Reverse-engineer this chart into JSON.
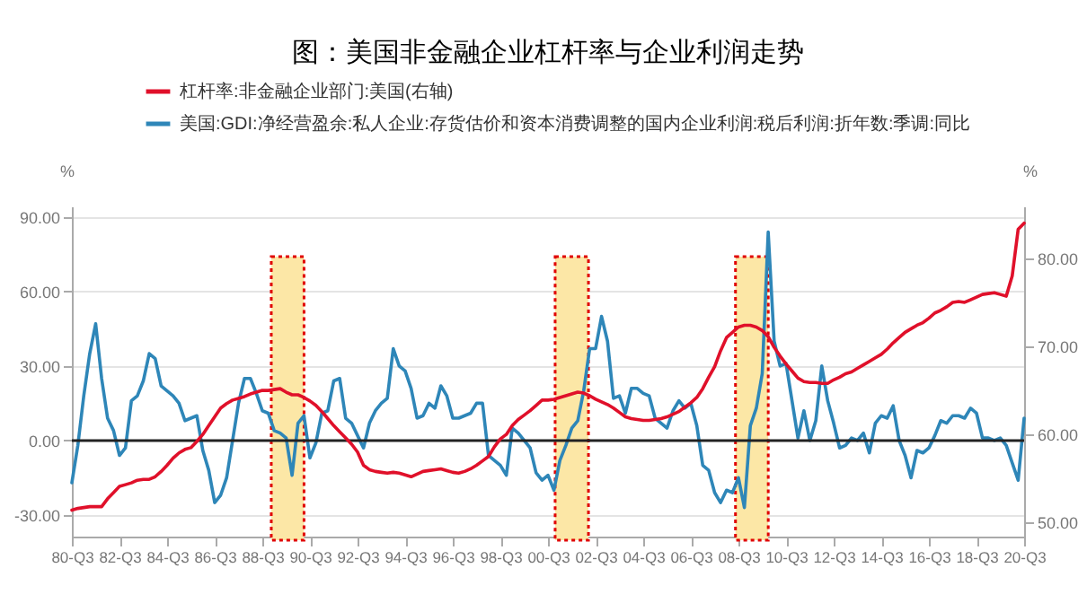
{
  "chart_data": {
    "type": "line",
    "title": "图：美国非金融企业杠杆率与企业利润走势",
    "ylabel": "%",
    "y2label": "%",
    "categories": [
      "80-Q3",
      null,
      null,
      null,
      null,
      null,
      null,
      null,
      "82-Q3",
      null,
      null,
      null,
      null,
      null,
      null,
      null,
      "84-Q3",
      null,
      null,
      null,
      null,
      null,
      null,
      null,
      "86-Q3",
      null,
      null,
      null,
      null,
      null,
      null,
      null,
      "88-Q3",
      null,
      null,
      null,
      null,
      null,
      null,
      null,
      "90-Q3",
      null,
      null,
      null,
      null,
      null,
      null,
      null,
      "92-Q3",
      null,
      null,
      null,
      null,
      null,
      null,
      null,
      "94-Q3",
      null,
      null,
      null,
      null,
      null,
      null,
      null,
      "96-Q3",
      null,
      null,
      null,
      null,
      null,
      null,
      null,
      "98-Q3",
      null,
      null,
      null,
      null,
      null,
      null,
      null,
      "00-Q3",
      null,
      null,
      null,
      null,
      null,
      null,
      null,
      "02-Q3",
      null,
      null,
      null,
      null,
      null,
      null,
      null,
      "04-Q3",
      null,
      null,
      null,
      null,
      null,
      null,
      null,
      "06-Q3",
      null,
      null,
      null,
      null,
      null,
      null,
      null,
      "08-Q3",
      null,
      null,
      null,
      null,
      null,
      null,
      null,
      "10-Q3",
      null,
      null,
      null,
      null,
      null,
      null,
      null,
      "12-Q3",
      null,
      null,
      null,
      null,
      null,
      null,
      null,
      "14-Q3",
      null,
      null,
      null,
      null,
      null,
      null,
      null,
      "16-Q3",
      null,
      null,
      null,
      null,
      null,
      null,
      null,
      "18-Q3",
      null,
      null,
      null,
      null,
      null,
      null,
      null,
      "20-Q3"
    ],
    "ylim": [
      -38.7,
      94.3
    ],
    "yticks": [
      {
        "value": -30,
        "label": "-30.00"
      },
      {
        "value": 0,
        "label": "0.00"
      },
      {
        "value": 30,
        "label": "30.00"
      },
      {
        "value": 60,
        "label": "60.00"
      },
      {
        "value": 90,
        "label": "90.00"
      }
    ],
    "y2lim": [
      48.4,
      85.9
    ],
    "y2ticks": [
      {
        "value": 50,
        "label": "50.00"
      },
      {
        "value": 60,
        "label": "60.00"
      },
      {
        "value": 70,
        "label": "70.00"
      },
      {
        "value": 80,
        "label": "80.00"
      }
    ],
    "series": [
      {
        "name": "杠杆率:非金融企业部门:美国(右轴)",
        "color": "#e0102a",
        "axis": "y2",
        "values": [
          51.4,
          51.6,
          51.7,
          51.8,
          51.8,
          51.8,
          52.7,
          53.4,
          54.1,
          54.3,
          54.5,
          54.8,
          54.9,
          54.9,
          55.2,
          55.8,
          56.5,
          57.3,
          57.9,
          58.3,
          58.5,
          59.2,
          60,
          61,
          62,
          63,
          63.5,
          63.9,
          64.1,
          64.3,
          64.6,
          64.8,
          65,
          65,
          65.1,
          65.2,
          64.8,
          64.5,
          64.5,
          64.2,
          63.8,
          63.3,
          62.6,
          61.8,
          61,
          60.3,
          59.6,
          58.9,
          58,
          56.5,
          56,
          55.8,
          55.7,
          55.6,
          55.7,
          55.6,
          55.4,
          55.2,
          55.5,
          55.8,
          55.9,
          56,
          56.1,
          55.9,
          55.7,
          55.6,
          55.8,
          56.1,
          56.5,
          57,
          57.5,
          58.6,
          59.5,
          60,
          61,
          61.7,
          62.2,
          62.7,
          63.3,
          63.9,
          63.9,
          64,
          64.2,
          64.4,
          64.6,
          64.8,
          64.7,
          64.4,
          64,
          63.7,
          63.4,
          63,
          62.5,
          62,
          61.8,
          61.7,
          61.6,
          61.6,
          61.7,
          61.8,
          62,
          62.3,
          62.6,
          63.1,
          63.6,
          64.2,
          65.2,
          66.5,
          67.7,
          69.5,
          71,
          71.6,
          72.2,
          72.4,
          72.4,
          72.2,
          71.8,
          71.1,
          69.9,
          68.9,
          68,
          67.2,
          66.4,
          66,
          65.9,
          65.9,
          65.8,
          65.8,
          66.2,
          66.5,
          66.9,
          67.1,
          67.5,
          67.9,
          68.3,
          68.7,
          69.1,
          69.7,
          70.4,
          71,
          71.6,
          72,
          72.4,
          72.7,
          73.2,
          73.8,
          74.1,
          74.5,
          75,
          75.1,
          75,
          75.3,
          75.6,
          75.9,
          76,
          76.1,
          75.9,
          75.7,
          78,
          83.3,
          84
        ]
      },
      {
        "name": "美国:GDI:净经营盈余:私人企业:存货估价和资本消费调整的国内企业利润:税后利润:折年数:季调:同比",
        "color": "#2e86b8",
        "values": [
          -17,
          -2,
          18,
          35,
          47,
          25,
          9,
          4,
          -6,
          -3,
          16,
          18,
          24,
          35,
          33,
          22,
          20,
          18,
          15,
          8,
          9,
          10,
          -4,
          -12,
          -25,
          -22,
          -15,
          0,
          15,
          25,
          25,
          19,
          12,
          11,
          4,
          3,
          1,
          -14,
          7,
          10,
          -7,
          -1,
          11,
          12,
          24,
          25,
          9,
          7,
          2,
          -3,
          7,
          12,
          15,
          17,
          37,
          30,
          28,
          21,
          9,
          10,
          15,
          13,
          22,
          18,
          9,
          9,
          10,
          11,
          15,
          15,
          -6,
          -8,
          -10,
          -14,
          5,
          3,
          0,
          -3,
          -13,
          -16,
          -14,
          -20,
          -8,
          -2,
          5,
          8,
          20,
          37,
          37,
          50,
          40,
          17,
          18,
          11,
          21,
          21,
          19,
          18,
          9,
          7,
          5,
          12,
          16,
          13,
          15,
          6,
          -10,
          -12,
          -21,
          -25,
          -20,
          -21,
          -15,
          -27,
          6,
          13,
          27,
          84,
          40,
          30,
          31,
          16,
          1,
          12,
          0,
          8,
          30,
          16,
          7,
          -3,
          -2,
          1,
          0,
          3,
          -5,
          7,
          10,
          9,
          14,
          0,
          -6,
          -15,
          -4,
          -5,
          -3,
          2,
          8,
          7,
          10,
          10,
          9,
          13,
          11,
          1,
          1,
          0,
          1,
          -2,
          -9,
          -16,
          9
        ]
      }
    ],
    "ref_lines": [
      {
        "axis": "y",
        "value": 0,
        "color": "#222222"
      }
    ],
    "grid": "y",
    "legend": "top",
    "marker": "none",
    "line_style": "solid"
  }
}
